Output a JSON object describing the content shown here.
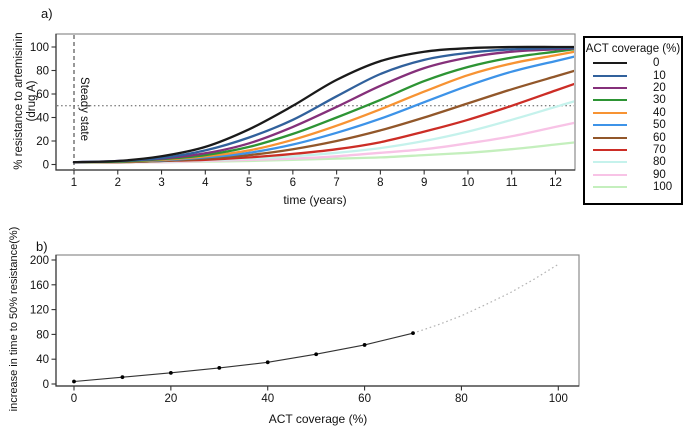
{
  "figure": {
    "panel_a_letter": "a)",
    "panel_b_letter": "b)"
  },
  "chart_data": [
    {
      "type": "line",
      "panel": "a",
      "title": "",
      "xlabel": "time (years)",
      "ylabel": "% resistance to artemisinin (drug A)",
      "ylabel_lines": [
        "% resistance to artemisinin",
        "(drug A)"
      ],
      "xlim": [
        0.6,
        12.45
      ],
      "ylim": [
        0,
        111
      ],
      "xticks": [
        1,
        2,
        3,
        4,
        5,
        6,
        7,
        8,
        9,
        10,
        11,
        12
      ],
      "yticks": [
        0,
        20,
        40,
        60,
        80,
        100
      ],
      "grid": false,
      "legend_title": "ACT coverage (%)",
      "legend_position": "right-outside",
      "annotations": {
        "vline_x": 1,
        "vline_style": "dashed",
        "vline_label": "Steady state",
        "hline_y": 50,
        "hline_style": "dotted"
      },
      "x": [
        1,
        2,
        3,
        4,
        5,
        6,
        7,
        8,
        9,
        10,
        11,
        12
      ],
      "series": [
        {
          "name": "0",
          "color": "#1a1a1a",
          "values": [
            2,
            3,
            7,
            15,
            30,
            50,
            72,
            88,
            96,
            99,
            100,
            100
          ]
        },
        {
          "name": "10",
          "color": "#31619c",
          "values": [
            2,
            3,
            5.5,
            12,
            23,
            38,
            58,
            77,
            89,
            95,
            98,
            99
          ]
        },
        {
          "name": "20",
          "color": "#85307a",
          "values": [
            2,
            3,
            5,
            9.5,
            18,
            32,
            49,
            67,
            82,
            91,
            96,
            98
          ]
        },
        {
          "name": "30",
          "color": "#2d9434",
          "values": [
            2,
            2.5,
            4.5,
            8,
            15,
            26,
            40,
            55,
            71,
            83,
            91,
            96
          ]
        },
        {
          "name": "40",
          "color": "#f79333",
          "values": [
            2,
            2.5,
            4,
            7,
            12,
            21,
            33,
            47,
            62,
            76,
            86,
            93
          ]
        },
        {
          "name": "50",
          "color": "#3d93e8",
          "values": [
            2,
            2.5,
            3.5,
            6,
            10,
            17,
            27,
            39,
            53,
            67,
            79,
            88
          ]
        },
        {
          "name": "60",
          "color": "#92572a",
          "values": [
            2,
            2,
            3,
            5,
            8,
            13,
            20,
            29,
            40,
            52,
            64,
            75
          ]
        },
        {
          "name": "70",
          "color": "#cc2d26",
          "values": [
            2,
            2,
            3,
            4,
            6,
            9,
            13,
            19,
            28,
            38,
            50,
            63
          ]
        },
        {
          "name": "80",
          "color": "#c5f2ec",
          "values": [
            2,
            2,
            2.5,
            3.5,
            5,
            7,
            10,
            14,
            20,
            28,
            38,
            49
          ]
        },
        {
          "name": "90",
          "color": "#f8c3e6",
          "values": [
            2,
            2,
            2,
            3,
            4,
            5,
            7,
            10,
            13,
            18,
            24,
            32
          ]
        },
        {
          "name": "100",
          "color": "#c4efbd",
          "values": [
            2,
            2,
            2,
            2.5,
            3,
            4,
            5,
            6,
            8,
            10,
            13,
            17
          ]
        }
      ]
    },
    {
      "type": "scatter",
      "panel": "b",
      "title": "",
      "xlabel": "ACT coverage (%)",
      "ylabel": "increase in time to 50% resistance(%)",
      "xlim": [
        -4,
        104
      ],
      "ylim": [
        0,
        208
      ],
      "xticks": [
        0,
        20,
        40,
        60,
        80,
        100
      ],
      "yticks": [
        0,
        40,
        80,
        120,
        160,
        200
      ],
      "marker": "dot",
      "line_style": "solid",
      "x": [
        0,
        10,
        20,
        30,
        40,
        50,
        60,
        70
      ],
      "y": [
        4,
        11,
        18,
        26,
        35,
        48,
        63,
        82
      ],
      "extrapolation": {
        "style": "dotted",
        "x": [
          70,
          75,
          80,
          85,
          90,
          95,
          100
        ],
        "y": [
          82,
          95,
          110,
          128,
          147,
          169,
          193
        ]
      }
    }
  ]
}
